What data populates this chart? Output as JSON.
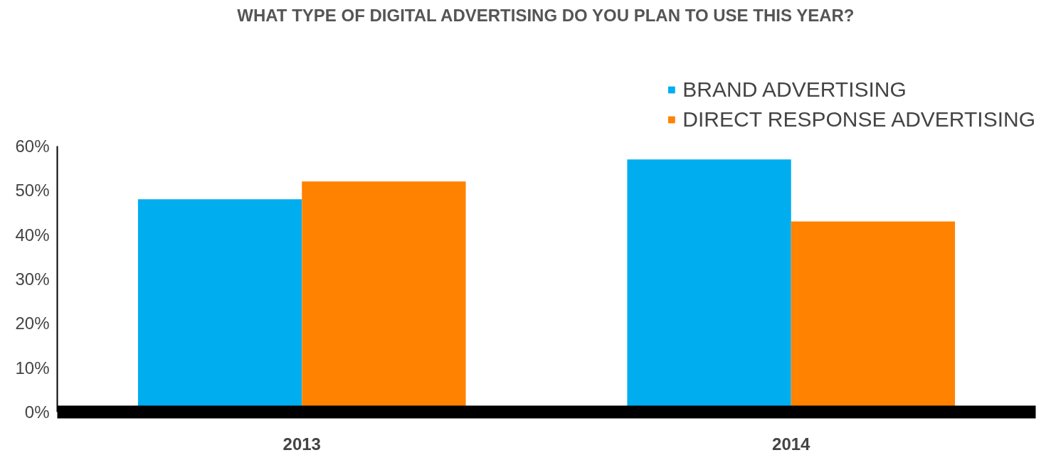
{
  "chart_data": {
    "type": "bar",
    "title": "WHAT TYPE OF DIGITAL ADVERTISING DO YOU PLAN TO USE THIS YEAR?",
    "categories": [
      "2013",
      "2014"
    ],
    "series": [
      {
        "name": "BRAND ADVERTISING",
        "color": "#00aeef",
        "values": [
          48,
          57
        ]
      },
      {
        "name": "DIRECT RESPONSE ADVERTISING",
        "color": "#ff8200",
        "values": [
          52,
          43
        ]
      }
    ],
    "ylim": [
      0,
      60
    ],
    "yticks": [
      {
        "value": 0,
        "label": "0%"
      },
      {
        "value": 10,
        "label": "10%"
      },
      {
        "value": 20,
        "label": "20%"
      },
      {
        "value": 30,
        "label": "30%"
      },
      {
        "value": 40,
        "label": "40%"
      },
      {
        "value": 50,
        "label": "50%"
      },
      {
        "value": 60,
        "label": "60%"
      }
    ],
    "legend": "top right",
    "grid": false
  }
}
